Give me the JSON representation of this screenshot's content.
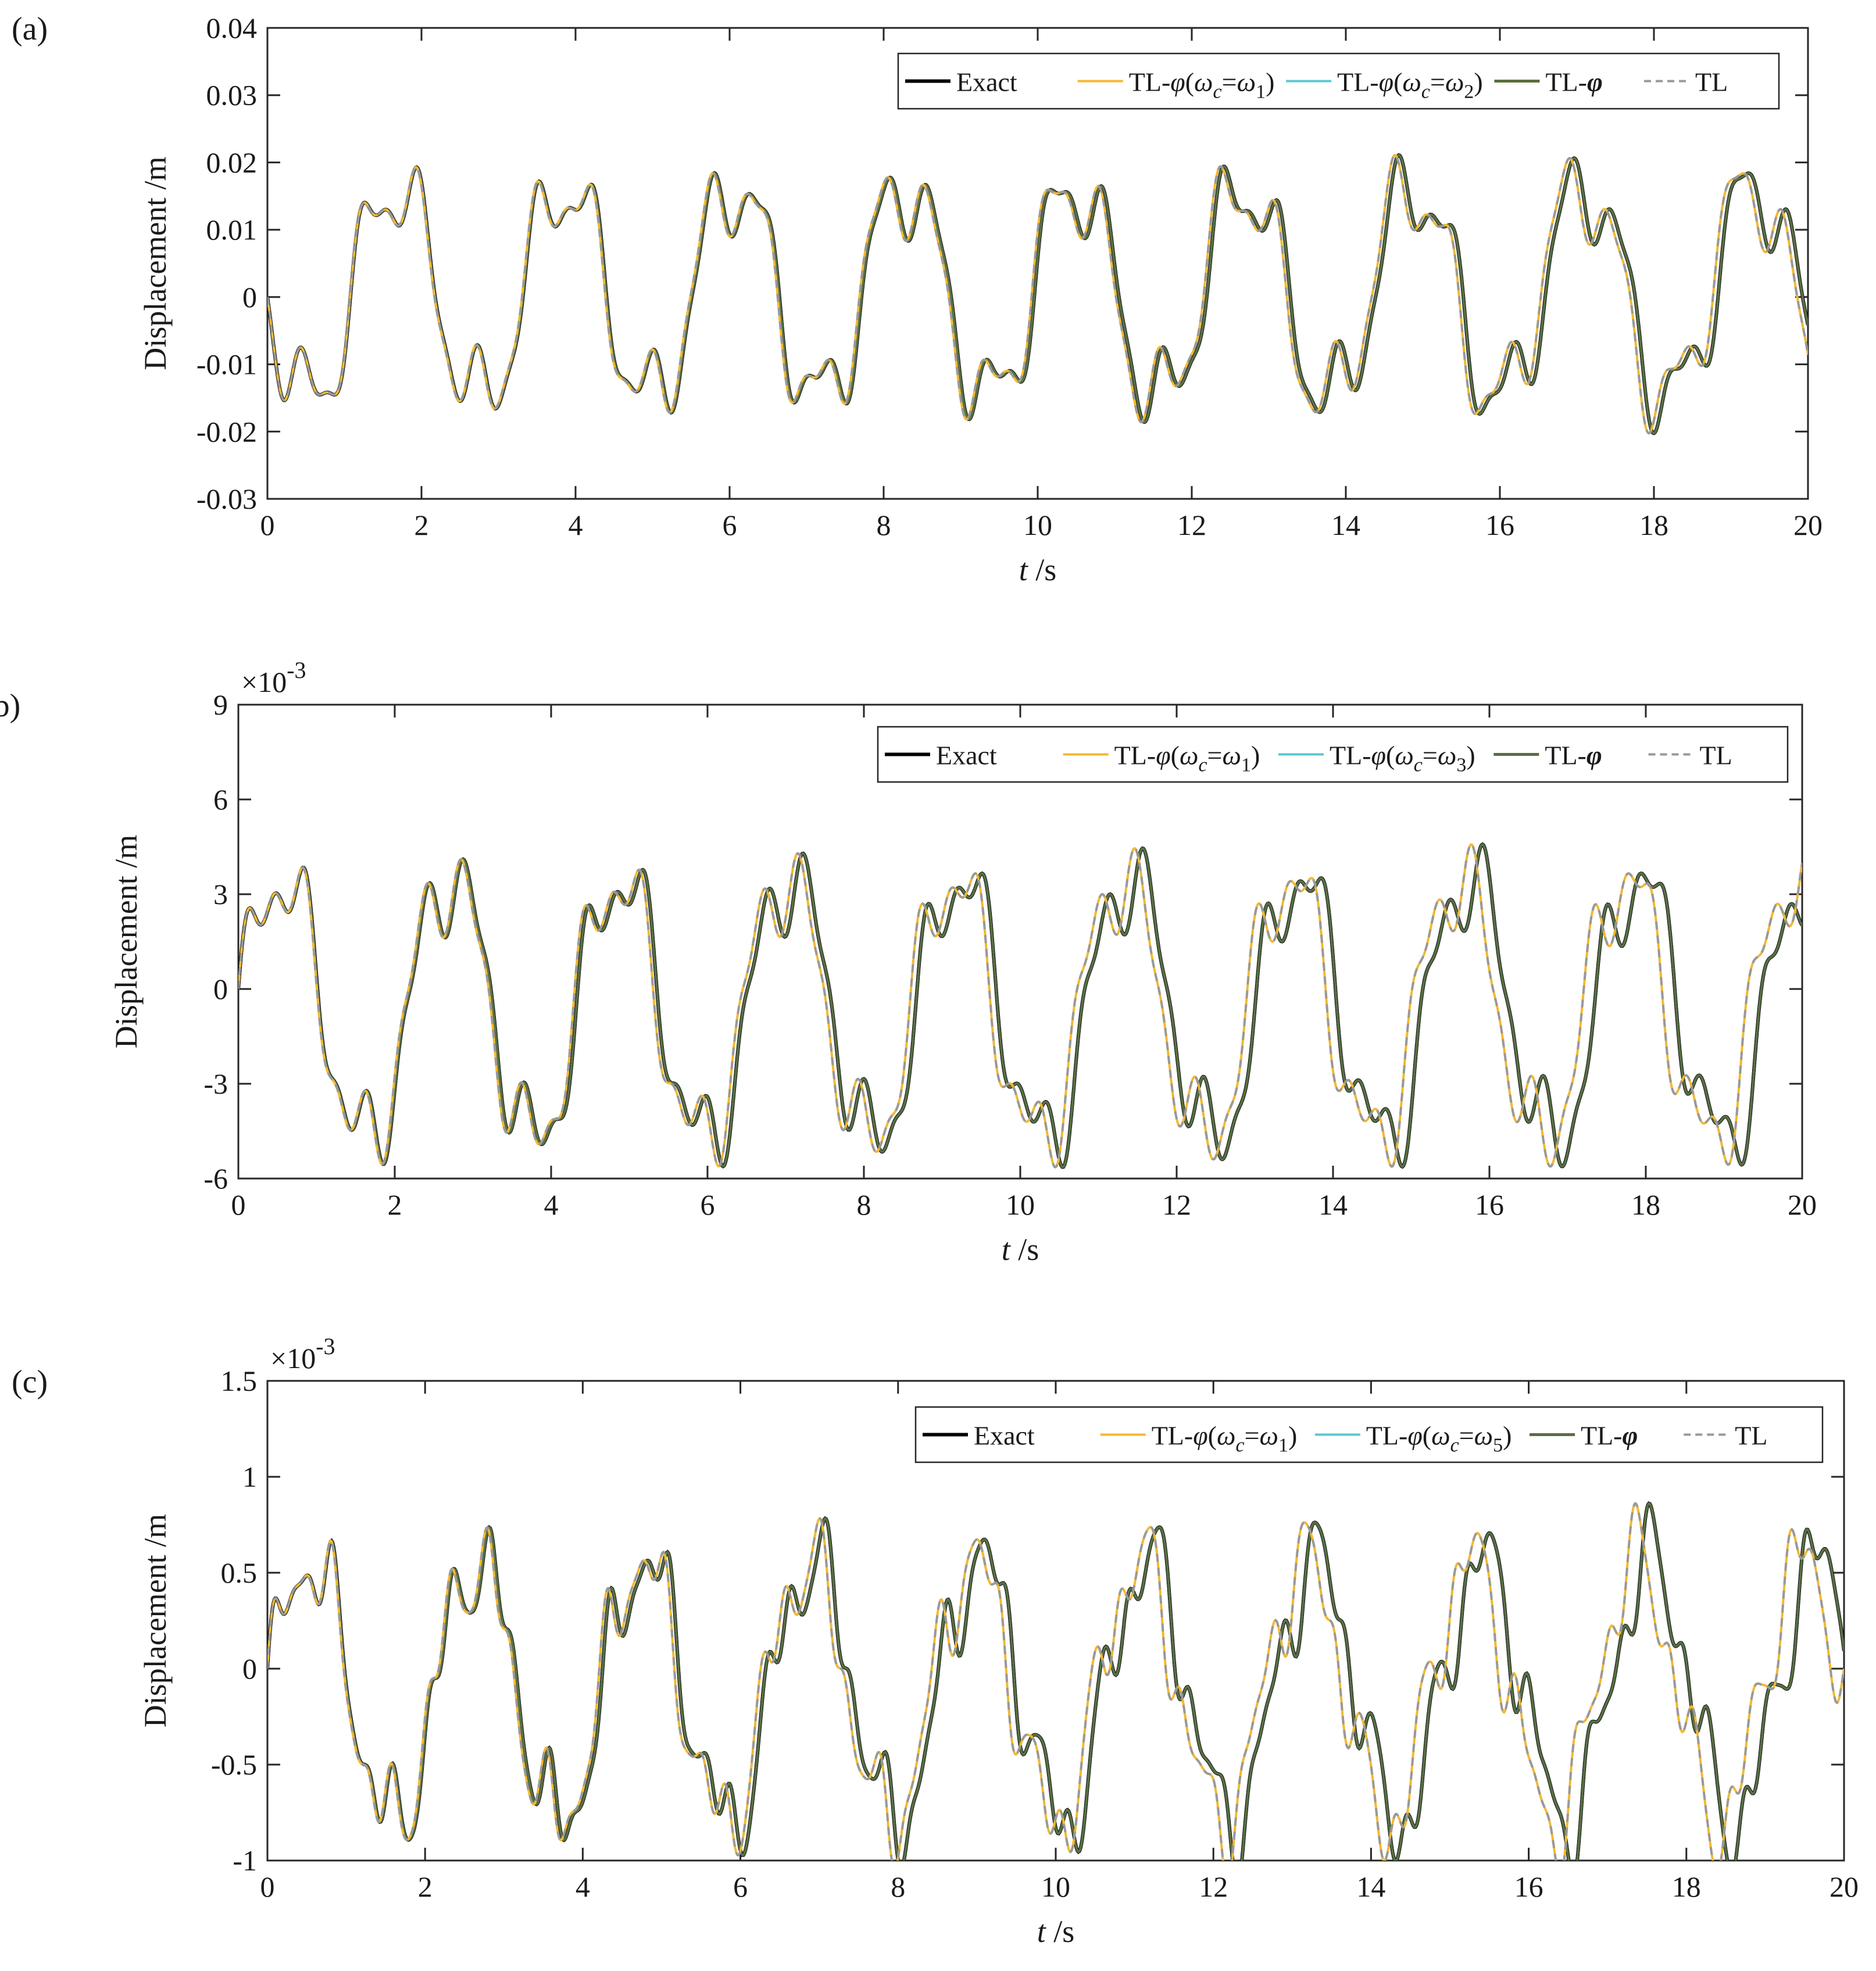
{
  "chart_data": [
    {
      "panel_label": "(a)",
      "type": "line",
      "xlabel_var": "t",
      "xlabel_unit": " /s",
      "ylabel": "Displacement /m",
      "xlim": [
        0,
        20
      ],
      "ylim": [
        -0.03,
        0.04
      ],
      "x_ticks": [
        0,
        2,
        4,
        6,
        8,
        10,
        12,
        14,
        16,
        18,
        20
      ],
      "x_tick_labels": [
        "0",
        "2",
        "4",
        "6",
        "8",
        "10",
        "12",
        "14",
        "16",
        "18",
        "20"
      ],
      "y_ticks": [
        -0.03,
        -0.02,
        -0.01,
        0,
        0.01,
        0.02,
        0.03,
        0.04
      ],
      "y_tick_labels": [
        "-0.03",
        "-0.02",
        "-0.01",
        "0",
        "0.01",
        "0.02",
        "0.03",
        "0.04"
      ],
      "exponent_label": "",
      "legend_position": "top-right",
      "legend": [
        "Exact",
        "TL-φ(ω_c=ω_1)",
        "TL-φ(ω_c=ω_2)",
        "TL-φ",
        "TL"
      ],
      "legend_wc_sub": "2",
      "signal": {
        "amplitude_scale": 1.0,
        "offset_scale": 0.0,
        "components": [
          {
            "amplitude": 0.016,
            "frequency_hz": 0.4545,
            "phase": 3.1416
          },
          {
            "amplitude": 0.006,
            "frequency_hz": 1.35,
            "phase": 3.6
          },
          {
            "amplitude": 0.0022,
            "frequency_hz": 2.6,
            "phase": 1.2
          }
        ],
        "lag_seconds": 0.035,
        "exact_scale": 1.0
      }
    },
    {
      "panel_label": "(b)",
      "type": "line",
      "xlabel_var": "t",
      "xlabel_unit": " /s",
      "ylabel": "Displacement /m",
      "xlim": [
        0,
        20
      ],
      "ylim": [
        -6,
        9
      ],
      "x_ticks": [
        0,
        2,
        4,
        6,
        8,
        10,
        12,
        14,
        16,
        18,
        20
      ],
      "x_tick_labels": [
        "0",
        "2",
        "4",
        "6",
        "8",
        "10",
        "12",
        "14",
        "16",
        "18",
        "20"
      ],
      "y_ticks": [
        -6,
        -3,
        0,
        3,
        6,
        9
      ],
      "y_tick_labels": [
        "-6",
        "-3",
        "0",
        "3",
        "6",
        "9"
      ],
      "exponent_label": "×10",
      "exponent_power": "-3",
      "legend_position": "top-right",
      "legend": [
        "Exact",
        "TL-φ(ω_c=ω_1)",
        "TL-φ(ω_c=ω_3)",
        "TL-φ",
        "TL"
      ],
      "legend_wc_sub": "3",
      "signal": {
        "amplitude_scale": 1.0,
        "offset_scale": 0.0,
        "components": [
          {
            "amplitude": 4.2,
            "frequency_hz": 0.465,
            "phase": 0.0
          },
          {
            "amplitude": 1.15,
            "frequency_hz": 1.4,
            "phase": 0.4
          },
          {
            "amplitude": 0.7,
            "frequency_hz": 2.55,
            "phase": 0.3
          }
        ],
        "lag_seconds": 0.09,
        "exact_scale": 1.0
      }
    },
    {
      "panel_label": "(c)",
      "type": "line",
      "xlabel_var": "t",
      "xlabel_unit": " /s",
      "ylabel": "Displacement /m",
      "xlim": [
        0,
        20
      ],
      "ylim": [
        -1,
        1.5
      ],
      "x_ticks": [
        0,
        2,
        4,
        6,
        8,
        10,
        12,
        14,
        16,
        18,
        20
      ],
      "x_tick_labels": [
        "0",
        "2",
        "4",
        "6",
        "8",
        "10",
        "12",
        "14",
        "16",
        "18",
        "20"
      ],
      "y_ticks": [
        -1,
        -0.5,
        0,
        0.5,
        1,
        1.5
      ],
      "y_tick_labels": [
        "-1",
        "-0.5",
        "0",
        "0.5",
        "1",
        "1.5"
      ],
      "exponent_label": "×10",
      "exponent_power": "-3",
      "legend_position": "top-right",
      "legend": [
        "Exact",
        "TL-φ(ω_c=ω_1)",
        "TL-φ(ω_c=ω_5)",
        "TL-φ",
        "TL"
      ],
      "legend_wc_sub": "5",
      "signal": {
        "amplitude_scale": 1.0,
        "offset_scale": 0.0,
        "components": [
          {
            "amplitude": 0.68,
            "frequency_hz": 0.475,
            "phase": 0.0
          },
          {
            "amplitude": 0.17,
            "frequency_hz": 1.45,
            "phase": 0.3
          },
          {
            "amplitude": 0.13,
            "frequency_hz": 2.6,
            "phase": 0.5
          },
          {
            "amplitude": 0.05,
            "frequency_hz": 4.0,
            "phase": 0.2
          }
        ],
        "lag_seconds": 0.1,
        "exact_scale": 1.0
      }
    }
  ],
  "colors": {
    "exact": "#000000",
    "tl_phi_w1": "#f5b82e",
    "tl_phi_wk": "#5bc8d0",
    "tl_phi": "#5a6e42",
    "tl": "#999999",
    "axis": "#262626"
  }
}
